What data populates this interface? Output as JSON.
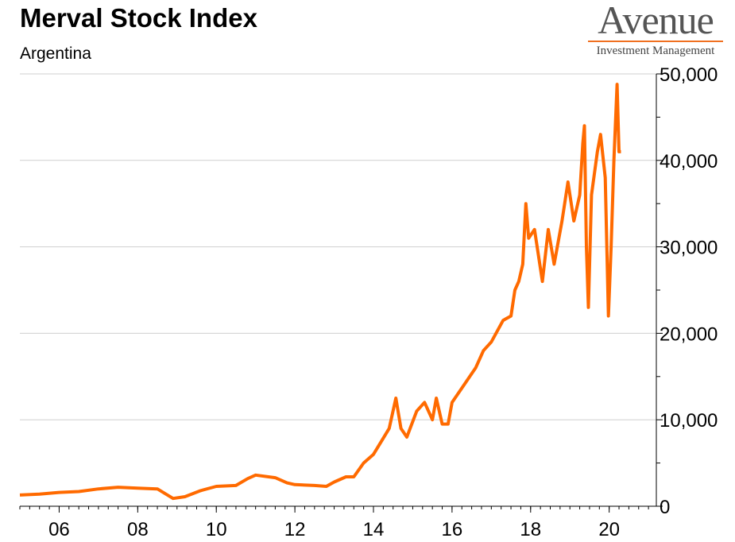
{
  "header": {
    "title": "Merval Stock Index",
    "subtitle": "Argentina"
  },
  "logo": {
    "name": "Avenue",
    "tagline": "Investment Management",
    "accent": "#f07020"
  },
  "chart_data": {
    "type": "line",
    "title": "Merval Stock Index",
    "subtitle": "Argentina",
    "xlabel": "",
    "ylabel": "",
    "xlim": [
      2005,
      2021.2
    ],
    "ylim": [
      0,
      50000
    ],
    "grid": true,
    "y_axis_side": "right",
    "x_ticks": [
      2006,
      2008,
      2010,
      2012,
      2014,
      2016,
      2018,
      2020
    ],
    "x_tick_labels": [
      "06",
      "08",
      "10",
      "12",
      "14",
      "16",
      "18",
      "20"
    ],
    "y_ticks": [
      0,
      10000,
      20000,
      30000,
      40000,
      50000
    ],
    "y_tick_labels": [
      "0",
      "10,000",
      "20,000",
      "30,000",
      "40,000",
      "50,000"
    ],
    "line_color": "#ff6a00",
    "x": [
      2005.0,
      2005.5,
      2006.0,
      2006.5,
      2007.0,
      2007.5,
      2008.0,
      2008.5,
      2008.9,
      2009.2,
      2009.6,
      2010.0,
      2010.5,
      2010.8,
      2011.0,
      2011.5,
      2011.8,
      2012.0,
      2012.5,
      2012.8,
      2013.0,
      2013.3,
      2013.5,
      2013.75,
      2014.0,
      2014.2,
      2014.4,
      2014.57,
      2014.7,
      2014.85,
      2015.1,
      2015.3,
      2015.5,
      2015.6,
      2015.75,
      2015.9,
      2016.0,
      2016.3,
      2016.6,
      2016.8,
      2017.0,
      2017.3,
      2017.5,
      2017.6,
      2017.7,
      2017.8,
      2017.88,
      2017.95,
      2018.1,
      2018.3,
      2018.45,
      2018.6,
      2018.8,
      2018.95,
      2019.1,
      2019.25,
      2019.33,
      2019.37,
      2019.42,
      2019.47,
      2019.55,
      2019.7,
      2019.78,
      2019.9,
      2019.98,
      2020.05,
      2020.12,
      2020.2,
      2020.25,
      2020.3
    ],
    "y": [
      1300,
      1400,
      1600,
      1700,
      2000,
      2200,
      2100,
      2000,
      900,
      1100,
      1800,
      2300,
      2400,
      3200,
      3600,
      3300,
      2700,
      2500,
      2400,
      2300,
      2800,
      3400,
      3400,
      5000,
      6000,
      7500,
      9000,
      12500,
      9000,
      8000,
      11000,
      12000,
      10000,
      12500,
      9500,
      9500,
      12000,
      14000,
      16000,
      18000,
      19000,
      21500,
      22000,
      25000,
      26000,
      28000,
      35000,
      31000,
      32000,
      26000,
      32000,
      28000,
      33000,
      37500,
      33000,
      36000,
      42000,
      44000,
      30000,
      23000,
      36000,
      41000,
      43000,
      38000,
      22000,
      30000,
      40000,
      48800,
      41000,
      41000
    ]
  }
}
